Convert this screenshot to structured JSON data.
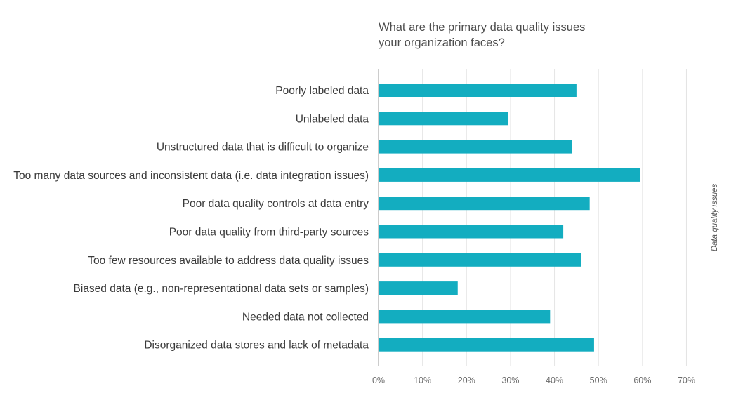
{
  "chart_data": {
    "type": "bar",
    "orientation": "horizontal",
    "title_lines": [
      "What are the primary data quality issues",
      "your organization faces?"
    ],
    "categories": [
      "Poorly labeled data",
      "Unlabeled data",
      "Unstructured data that is difficult to organize",
      "Too many data sources and inconsistent data (i.e. data integration issues)",
      "Poor data quality controls at data entry",
      "Poor data quality from third-party sources",
      "Too few resources available to address data quality issues",
      "Biased data (e.g., non-representational data sets or samples)",
      "Needed data not collected",
      "Disorganized data stores and lack of metadata"
    ],
    "series": [
      {
        "name": "Data quality issues",
        "values": [
          45.0,
          29.5,
          44.0,
          59.5,
          48.0,
          42.0,
          46.0,
          18.0,
          39.0,
          49.0
        ]
      }
    ],
    "xlim": [
      0,
      70
    ],
    "xticks": [
      "0%",
      "10%",
      "20%",
      "30%",
      "40%",
      "50%",
      "60%",
      "70%"
    ],
    "grid": "vertical",
    "legend": "right (vertical text)",
    "colors": {
      "bar": "#13adc0",
      "grid": "#e4e4e4",
      "axis": "#9a9a9a"
    }
  }
}
